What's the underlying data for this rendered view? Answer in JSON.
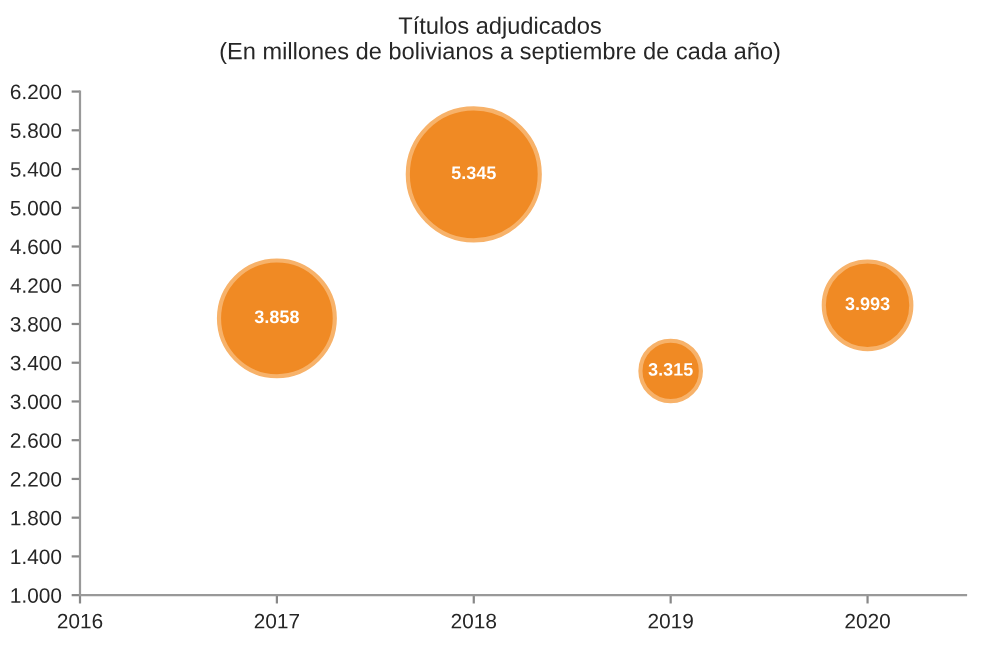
{
  "chart_data": {
    "type": "bubble",
    "title": "Títulos adjudicados\n(En millones de bolivianos a septiembre de cada año)",
    "x": [
      2017,
      2018,
      2019,
      2020
    ],
    "series": [
      {
        "color": "#f08a24",
        "values": [
          3858,
          5345,
          3315,
          3993
        ],
        "sizes": [
          0.77,
          1,
          0.21,
          0.44
        ],
        "value_labels": [
          "3.858",
          "5.345",
          "3.315",
          "3.993"
        ]
      }
    ],
    "xlim": [
      2016,
      2020.5
    ],
    "xticks": [
      2016,
      2017,
      2018,
      2019,
      2020
    ],
    "ylim": [
      1000,
      6200
    ],
    "yticks": [
      {
        "value": 1000,
        "label": "1.000"
      },
      {
        "value": 1400,
        "label": "1.400"
      },
      {
        "value": 1800,
        "label": "1.800"
      },
      {
        "value": 2200,
        "label": "2.200"
      },
      {
        "value": 2600,
        "label": "2.600"
      },
      {
        "value": 3000,
        "label": "3.000"
      },
      {
        "value": 3400,
        "label": "3.400"
      },
      {
        "value": 3800,
        "label": "3.800"
      },
      {
        "value": 4200,
        "label": "4.200"
      },
      {
        "value": 4600,
        "label": "4.600"
      },
      {
        "value": 5000,
        "label": "5.000"
      },
      {
        "value": 5400,
        "label": "5.400"
      },
      {
        "value": 5800,
        "label": "5.800"
      },
      {
        "value": 6200,
        "label": "6.200"
      }
    ],
    "grid": false,
    "legend": false
  }
}
